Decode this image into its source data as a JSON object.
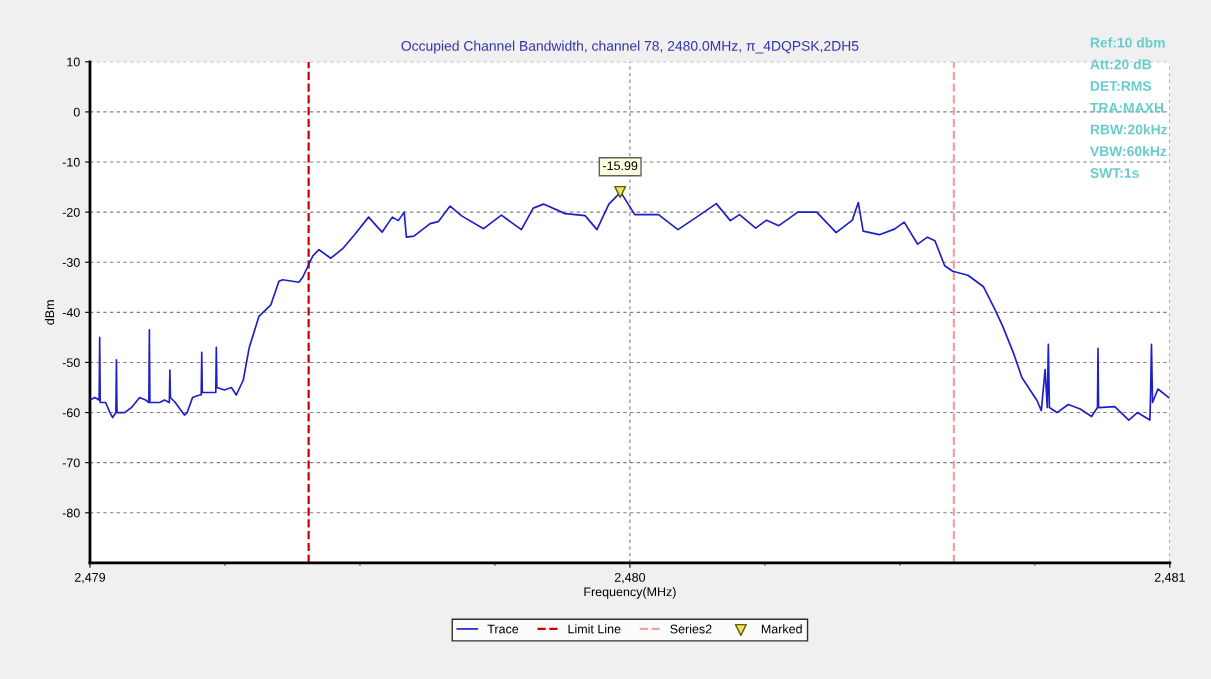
{
  "chart_data": {
    "type": "line",
    "title": "Occupied Channel Bandwidth, channel 78, 2480.0MHz, π_4DQPSK,2DH5",
    "xlabel": "Frequency(MHz)",
    "ylabel": "dBm",
    "xlim": [
      2479,
      2481
    ],
    "xticks": [
      {
        "value": 2479,
        "label": "2,479"
      },
      {
        "value": 2479.25,
        "label": null
      },
      {
        "value": 2479.5,
        "label": null
      },
      {
        "value": 2479.75,
        "label": null
      },
      {
        "value": 2480,
        "label": "2,480"
      },
      {
        "value": 2480.25,
        "label": null
      },
      {
        "value": 2480.5,
        "label": null
      },
      {
        "value": 2480.75,
        "label": null
      },
      {
        "value": 2481,
        "label": "2,481"
      }
    ],
    "ylim": [
      -90,
      10
    ],
    "yticks": [
      10,
      0,
      -10,
      -20,
      -30,
      -40,
      -50,
      -60,
      -70,
      -80
    ],
    "grid": true,
    "legend": "bottom",
    "series": [
      {
        "name": "Trace",
        "color": "#1f1fc8",
        "marker": "none",
        "x": [
          2479.0,
          2479.009,
          2479.017,
          2479.018,
          2479.019,
          2479.029,
          2479.037,
          2479.042,
          2479.048,
          2479.049,
          2479.05,
          2479.064,
          2479.077,
          2479.092,
          2479.103,
          2479.109,
          2479.11,
          2479.111,
          2479.129,
          2479.138,
          2479.147,
          2479.148,
          2479.149,
          2479.158,
          2479.168,
          2479.175,
          2479.18,
          2479.19,
          2479.203,
          2479.206,
          2479.207,
          2479.208,
          2479.219,
          2479.233,
          2479.234,
          2479.235,
          2479.249,
          2479.262,
          2479.271,
          2479.284,
          2479.295,
          2479.313,
          2479.335,
          2479.35,
          2479.357,
          2479.387,
          2479.394,
          2479.413,
          2479.424,
          2479.446,
          2479.468,
          2479.49,
          2479.516,
          2479.541,
          2479.56,
          2479.571,
          2479.582,
          2479.586,
          2479.6,
          2479.63,
          2479.645,
          2479.667,
          2479.689,
          2479.729,
          2479.762,
          2479.799,
          2479.821,
          2479.84,
          2479.88,
          2479.917,
          2479.939,
          2479.961,
          2479.983,
          2480.009,
          2480.053,
          2480.089,
          2480.125,
          2480.16,
          2480.186,
          2480.203,
          2480.233,
          2480.253,
          2480.276,
          2480.311,
          2480.346,
          2480.382,
          2480.412,
          2480.423,
          2480.432,
          2480.462,
          2480.49,
          2480.508,
          2480.533,
          2480.551,
          2480.565,
          2480.583,
          2480.598,
          2480.626,
          2480.655,
          2480.676,
          2480.691,
          2480.711,
          2480.726,
          2480.754,
          2480.762,
          2480.769,
          2480.773,
          2480.775,
          2480.777,
          2480.791,
          2480.812,
          2480.834,
          2480.855,
          2480.866,
          2480.867,
          2480.868,
          2480.898,
          2480.924,
          2480.94,
          2480.963,
          2480.964,
          2480.966,
          2480.968,
          2480.978,
          2480.998
        ],
        "values": [
          -57.5,
          -57,
          -57.5,
          -45,
          -58,
          -58,
          -60,
          -61,
          -60,
          -49.5,
          -60,
          -60,
          -59,
          -57,
          -57.5,
          -58,
          -43.5,
          -58,
          -58,
          -57.5,
          -58,
          -51.5,
          -57,
          -58,
          -59.5,
          -60.5,
          -60,
          -57,
          -56.5,
          -56.5,
          -48,
          -56,
          -56,
          -56,
          -47,
          -55,
          -55.5,
          -55,
          -56.5,
          -53.5,
          -47,
          -40.8,
          -38.5,
          -33.8,
          -33.5,
          -34,
          -33,
          -28.7,
          -27.5,
          -29.2,
          -27.3,
          -24.5,
          -21,
          -24,
          -21,
          -21.7,
          -20,
          -25,
          -24.8,
          -22.3,
          -21.9,
          -18.8,
          -20.8,
          -23.3,
          -20.6,
          -23.5,
          -19.2,
          -18.4,
          -20.3,
          -20.7,
          -23.5,
          -18.4,
          -16,
          -20.5,
          -20.5,
          -23.5,
          -20.9,
          -18.3,
          -21.7,
          -20.5,
          -23.2,
          -21.6,
          -22.7,
          -20,
          -20,
          -24.1,
          -21.6,
          -18.1,
          -23.8,
          -24.5,
          -23.4,
          -22,
          -26.4,
          -25,
          -25.7,
          -30.7,
          -31.8,
          -32.6,
          -34.9,
          -39.4,
          -42.9,
          -48.3,
          -53,
          -57.6,
          -59.6,
          -51.4,
          -59,
          -46.4,
          -59,
          -60,
          -58.4,
          -59.3,
          -60.8,
          -59,
          -47.2,
          -59,
          -58.8,
          -61.5,
          -60,
          -61.5,
          -58,
          -46.4,
          -58,
          -55.3,
          -57
        ]
      },
      {
        "name": "Marked",
        "type": "scatter",
        "color": "#f0e060",
        "marker": "triangle",
        "x": [
          2479.982
        ],
        "values": [
          -15.99
        ],
        "value_labels": [
          "-15.99"
        ]
      }
    ],
    "ref_lines": [
      {
        "axis": "x",
        "value": 2479.405,
        "label": "Limit Line",
        "color": "#cc0000",
        "line_style": "dashed"
      },
      {
        "axis": "x",
        "value": 2480.6,
        "label": "Series2",
        "color": "#f4a0a0",
        "line_style": "dashed"
      }
    ],
    "annotations": [
      "Ref:10 dbm",
      "Att:20 dB",
      "DET:RMS",
      "TRA:MAXH",
      "RBW:20kHz",
      "VBW:60kHz",
      "SWT:1s"
    ]
  }
}
